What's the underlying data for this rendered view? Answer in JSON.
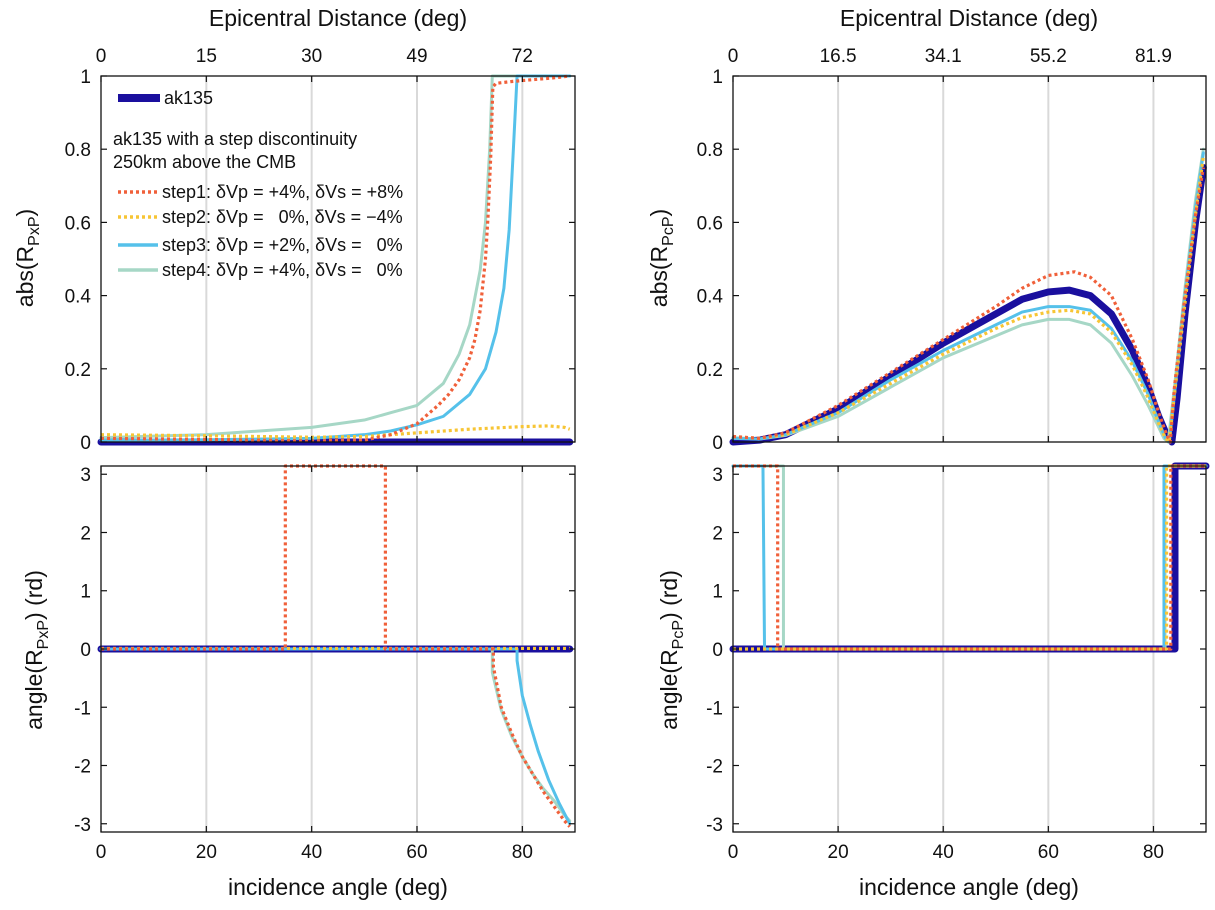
{
  "colors": {
    "ak135": "#1a0f9e",
    "step1": "#f0603a",
    "step2": "#f7c535",
    "step3": "#55c1ea",
    "step4": "#a6d7c6",
    "grid": "#d9d9d9"
  },
  "chart_data": [
    {
      "id": "pxp_abs",
      "type": "line",
      "top_axis": {
        "label": "Epicentral Distance (deg)",
        "ticks": [
          {
            "at": 0,
            "label": "0"
          },
          {
            "at": 20,
            "label": "15"
          },
          {
            "at": 40,
            "label": "30"
          },
          {
            "at": 60,
            "label": "49"
          },
          {
            "at": 80,
            "label": "72"
          }
        ]
      },
      "xlabel": "",
      "ylabel": "abs(R",
      "ylabel_sub": "PxP",
      "ylabel_tail": ")",
      "xlim": [
        0,
        90
      ],
      "ylim": [
        0,
        1
      ],
      "xticks": [
        0,
        20,
        40,
        60,
        80
      ],
      "yticks": [
        {
          "v": 0,
          "label": "0"
        },
        {
          "v": 0.2,
          "label": "0.2"
        },
        {
          "v": 0.4,
          "label": "0.4"
        },
        {
          "v": 0.6,
          "label": "0.6"
        },
        {
          "v": 0.8,
          "label": "0.8"
        },
        {
          "v": 1,
          "label": "1"
        }
      ],
      "grid": true,
      "legend": {
        "position": "top-left",
        "entries": [
          "ak135",
          "step1: δVp = +4%, δVs = +8%",
          "step2: δVp =   0%, δVs = −4%",
          "step3: δVp = +2%, δVs =   0%",
          "step4: δVp = +4%, δVs =   0%"
        ],
        "note_line1": "ak135 with a step discontinuity",
        "note_line2": "250km above the CMB"
      },
      "series": [
        {
          "name": "ak135",
          "key": "ak135",
          "x": [
            0,
            89
          ],
          "y": [
            0,
            0
          ]
        },
        {
          "name": "step1: δVp = +4%, δVs = +8%",
          "key": "step1",
          "x": [
            0,
            20,
            40,
            50,
            55,
            60,
            64,
            66,
            68,
            70,
            71,
            72,
            73,
            73.5,
            74,
            74.4,
            75,
            78,
            82,
            86,
            89
          ],
          "y": [
            0.01,
            0.007,
            0.003,
            0.005,
            0.02,
            0.05,
            0.1,
            0.13,
            0.17,
            0.23,
            0.28,
            0.36,
            0.5,
            0.62,
            0.78,
            0.97,
            0.98,
            0.985,
            0.99,
            0.995,
            1.0
          ]
        },
        {
          "name": "step2: δVp =   0%, δVs = −4%",
          "key": "step2",
          "x": [
            0,
            20,
            40,
            50,
            60,
            70,
            80,
            85,
            88,
            89
          ],
          "y": [
            0.02,
            0.017,
            0.013,
            0.015,
            0.025,
            0.035,
            0.042,
            0.044,
            0.04,
            0.035
          ]
        },
        {
          "name": "step3: δVp = +2%, δVs =   0%",
          "key": "step3",
          "x": [
            0,
            20,
            40,
            50,
            55,
            60,
            65,
            70,
            73,
            75,
            76.5,
            77.5,
            78.3,
            79,
            80,
            85,
            89
          ],
          "y": [
            0.005,
            0.006,
            0.01,
            0.02,
            0.03,
            0.047,
            0.07,
            0.13,
            0.2,
            0.3,
            0.42,
            0.58,
            0.8,
            1.0,
            1.0,
            1.0,
            1.0
          ]
        },
        {
          "name": "step4: δVp = +4%, δVs =   0%",
          "key": "step4",
          "x": [
            0,
            20,
            40,
            50,
            55,
            60,
            65,
            68,
            70,
            72,
            73,
            73.8,
            74.3,
            75,
            80,
            85,
            89
          ],
          "y": [
            0.012,
            0.02,
            0.04,
            0.06,
            0.08,
            0.1,
            0.16,
            0.24,
            0.32,
            0.47,
            0.6,
            0.8,
            1.0,
            1.0,
            1.0,
            1.0,
            1.0
          ]
        }
      ]
    },
    {
      "id": "pcp_abs",
      "type": "line",
      "top_axis": {
        "label": "Epicentral Distance (deg)",
        "ticks": [
          {
            "at": 0,
            "label": "0"
          },
          {
            "at": 20,
            "label": "16.5"
          },
          {
            "at": 40,
            "label": "34.1"
          },
          {
            "at": 60,
            "label": "55.2"
          },
          {
            "at": 80,
            "label": "81.9"
          }
        ]
      },
      "xlabel": "",
      "ylabel": "abs(R",
      "ylabel_sub": "PcP",
      "ylabel_tail": ")",
      "xlim": [
        0,
        90
      ],
      "ylim": [
        0,
        1
      ],
      "xticks": [
        0,
        20,
        40,
        60,
        80
      ],
      "yticks": [
        {
          "v": 0,
          "label": "0"
        },
        {
          "v": 0.2,
          "label": "0.2"
        },
        {
          "v": 0.4,
          "label": "0.4"
        },
        {
          "v": 0.6,
          "label": "0.6"
        },
        {
          "v": 0.8,
          "label": "0.8"
        },
        {
          "v": 1,
          "label": "1"
        }
      ],
      "grid": true,
      "series": [
        {
          "name": "ak135",
          "key": "ak135",
          "x": [
            0,
            5,
            10,
            20,
            30,
            40,
            50,
            55,
            60,
            64,
            68,
            72,
            76,
            79,
            81,
            82.5,
            83.5,
            84.5,
            86,
            88,
            89.5
          ],
          "y": [
            0,
            0.005,
            0.02,
            0.09,
            0.18,
            0.27,
            0.35,
            0.39,
            0.41,
            0.415,
            0.4,
            0.35,
            0.25,
            0.15,
            0.07,
            0.02,
            0,
            0.12,
            0.35,
            0.6,
            0.75
          ]
        },
        {
          "name": "step1",
          "key": "step1",
          "x": [
            0,
            5,
            10,
            20,
            30,
            40,
            50,
            55,
            60,
            65,
            68,
            72,
            76,
            79,
            81,
            82.5,
            83.2,
            84,
            86,
            88,
            89.5
          ],
          "y": [
            0.015,
            0.01,
            0.025,
            0.1,
            0.19,
            0.28,
            0.37,
            0.42,
            0.455,
            0.465,
            0.45,
            0.4,
            0.28,
            0.17,
            0.08,
            0.02,
            0,
            0.15,
            0.4,
            0.62,
            0.75
          ]
        },
        {
          "name": "step2",
          "key": "step2",
          "x": [
            0,
            5,
            10,
            20,
            30,
            40,
            50,
            55,
            60,
            64,
            68,
            72,
            76,
            79,
            81,
            82.3,
            83,
            84,
            86,
            88,
            89.5
          ],
          "y": [
            0.015,
            0.01,
            0.02,
            0.08,
            0.16,
            0.24,
            0.31,
            0.34,
            0.355,
            0.36,
            0.35,
            0.3,
            0.21,
            0.12,
            0.05,
            0.01,
            0,
            0.13,
            0.38,
            0.62,
            0.78
          ]
        },
        {
          "name": "step3",
          "key": "step3",
          "x": [
            0,
            5,
            10,
            20,
            30,
            40,
            50,
            55,
            60,
            64,
            68,
            72,
            76,
            79,
            81,
            82.3,
            83,
            84,
            86,
            88,
            89.5
          ],
          "y": [
            0.01,
            0.008,
            0.02,
            0.08,
            0.17,
            0.25,
            0.32,
            0.355,
            0.37,
            0.37,
            0.36,
            0.31,
            0.22,
            0.13,
            0.055,
            0.01,
            0,
            0.13,
            0.4,
            0.64,
            0.79
          ]
        },
        {
          "name": "step4",
          "key": "step4",
          "x": [
            0,
            5,
            10,
            20,
            30,
            40,
            50,
            55,
            60,
            64,
            68,
            72,
            76,
            79,
            81,
            82,
            82.8,
            84,
            86,
            88,
            89.5
          ],
          "y": [
            0.012,
            0.008,
            0.018,
            0.07,
            0.15,
            0.23,
            0.29,
            0.32,
            0.335,
            0.335,
            0.32,
            0.27,
            0.18,
            0.1,
            0.04,
            0.01,
            0,
            0.15,
            0.42,
            0.66,
            0.8
          ]
        }
      ]
    },
    {
      "id": "pxp_angle",
      "type": "line",
      "xlabel": "incidence angle (deg)",
      "ylabel": "angle(R",
      "ylabel_sub": "PxP",
      "ylabel_tail": ") (rd)",
      "xlim": [
        0,
        90
      ],
      "ylim": [
        -3.14159,
        3.14159
      ],
      "xticks": [
        0,
        20,
        40,
        60,
        80
      ],
      "yticks": [
        {
          "v": -3,
          "label": "-3"
        },
        {
          "v": -2,
          "label": "-2"
        },
        {
          "v": -1,
          "label": "-1"
        },
        {
          "v": 0,
          "label": "0"
        },
        {
          "v": 1,
          "label": "1"
        },
        {
          "v": 2,
          "label": "2"
        },
        {
          "v": 3,
          "label": "3"
        }
      ],
      "grid": true,
      "series": [
        {
          "name": "ak135",
          "key": "ak135",
          "x": [
            0,
            89
          ],
          "y": [
            0,
            0
          ]
        },
        {
          "name": "step1",
          "key": "step1",
          "x": [
            0,
            35,
            35,
            54,
            54,
            74.5,
            74.5,
            76,
            78,
            80,
            82,
            84,
            86,
            88,
            89
          ],
          "y": [
            0,
            0,
            3.1416,
            3.1416,
            0,
            0,
            -0.3,
            -1.0,
            -1.45,
            -1.85,
            -2.15,
            -2.45,
            -2.7,
            -2.95,
            -3.05
          ]
        },
        {
          "name": "step2",
          "key": "step2",
          "x": [
            0,
            89
          ],
          "y": [
            0.01,
            0.01
          ]
        },
        {
          "name": "step3",
          "key": "step3",
          "x": [
            0,
            79,
            79,
            80,
            81.5,
            83,
            85,
            87,
            89
          ],
          "y": [
            0,
            0,
            -0.2,
            -0.8,
            -1.3,
            -1.75,
            -2.25,
            -2.65,
            -3.0
          ]
        },
        {
          "name": "step4",
          "key": "step4",
          "x": [
            0,
            74.3,
            74.3,
            76,
            78,
            80,
            82,
            84,
            86,
            88,
            89
          ],
          "y": [
            0,
            0,
            -0.4,
            -1.05,
            -1.5,
            -1.85,
            -2.15,
            -2.4,
            -2.6,
            -2.85,
            -2.95
          ]
        }
      ]
    },
    {
      "id": "pcp_angle",
      "type": "line",
      "xlabel": "incidence angle (deg)",
      "ylabel": "angle(R",
      "ylabel_sub": "PcP",
      "ylabel_tail": ") (rd)",
      "xlim": [
        0,
        90
      ],
      "ylim": [
        -3.14159,
        3.14159
      ],
      "xticks": [
        0,
        20,
        40,
        60,
        80
      ],
      "yticks": [
        {
          "v": -3,
          "label": "-3"
        },
        {
          "v": -2,
          "label": "-2"
        },
        {
          "v": -1,
          "label": "-1"
        },
        {
          "v": 0,
          "label": "0"
        },
        {
          "v": 1,
          "label": "1"
        },
        {
          "v": 2,
          "label": "2"
        },
        {
          "v": 3,
          "label": "3"
        }
      ],
      "grid": true,
      "series": [
        {
          "name": "ak135",
          "key": "ak135",
          "x": [
            0,
            84.1,
            84.1,
            90
          ],
          "y": [
            0,
            0,
            3.1416,
            3.1416
          ]
        },
        {
          "name": "step1",
          "key": "step1",
          "x": [
            0,
            8.5,
            8.5,
            83.3,
            83.3,
            90
          ],
          "y": [
            3.1416,
            3.1416,
            0,
            0,
            3.1416,
            3.1416
          ]
        },
        {
          "name": "step2",
          "key": "step2",
          "x": [
            0,
            82.5,
            82.5,
            90
          ],
          "y": [
            0,
            0,
            3.1416,
            3.1416
          ]
        },
        {
          "name": "step3",
          "key": "step3",
          "x": [
            0,
            5.7,
            6.0,
            6.0,
            82.0,
            82.0,
            90
          ],
          "y": [
            3.1416,
            3.1416,
            0.0,
            0,
            0,
            3.1416,
            3.1416
          ]
        },
        {
          "name": "step4",
          "key": "step4",
          "x": [
            0,
            9.6,
            9.6,
            82.2,
            82.2,
            90
          ],
          "y": [
            3.1416,
            3.1416,
            0,
            0,
            3.1416,
            3.1416
          ]
        }
      ]
    }
  ]
}
